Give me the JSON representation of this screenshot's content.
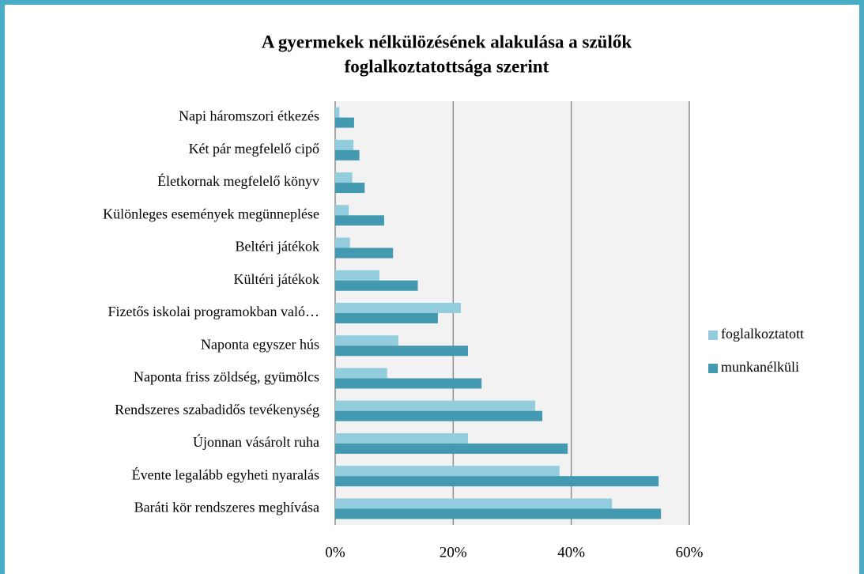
{
  "chart_data": {
    "type": "bar",
    "orientation": "horizontal",
    "title": [
      "A gyermekek nélkülözésének alakulása a szülők",
      "foglalkoztatottsága szerint"
    ],
    "categories": [
      "Napi háromszori étkezés",
      "Két pár megfelelő cipő",
      "Életkornak megfelelő könyv",
      "Különleges események megünneplése",
      "Beltéri játékok",
      "Kültéri játékok",
      "Fizetős iskolai programokban való…",
      "Naponta egyszer hús",
      "Naponta friss zöldség, gyümölcs",
      "Rendszeres szabadidős tevékenység",
      "Újonnan vásárolt ruha",
      "Évente legalább egyheti nyaralás",
      "Baráti kör rendszeres meghívása"
    ],
    "series": [
      {
        "name": "foglalkoztatott",
        "color": "#93cddd",
        "values": [
          0.7,
          3.1,
          2.9,
          2.3,
          2.5,
          7.5,
          21.3,
          10.7,
          8.8,
          33.9,
          22.5,
          38,
          46.9
        ]
      },
      {
        "name": "munkanélküli",
        "color": "#4299b0",
        "values": [
          3.2,
          4.1,
          5,
          8.3,
          9.8,
          14,
          17.4,
          22.5,
          24.8,
          35.1,
          39.4,
          54.8,
          55.2
        ]
      }
    ],
    "xlim": [
      0,
      60
    ],
    "xticks": [
      {
        "value": 0,
        "label": "0%"
      },
      {
        "value": 20,
        "label": "20%"
      },
      {
        "value": 40,
        "label": "40%"
      },
      {
        "value": 60,
        "label": "60%"
      }
    ],
    "grid": true,
    "legend": "right"
  }
}
